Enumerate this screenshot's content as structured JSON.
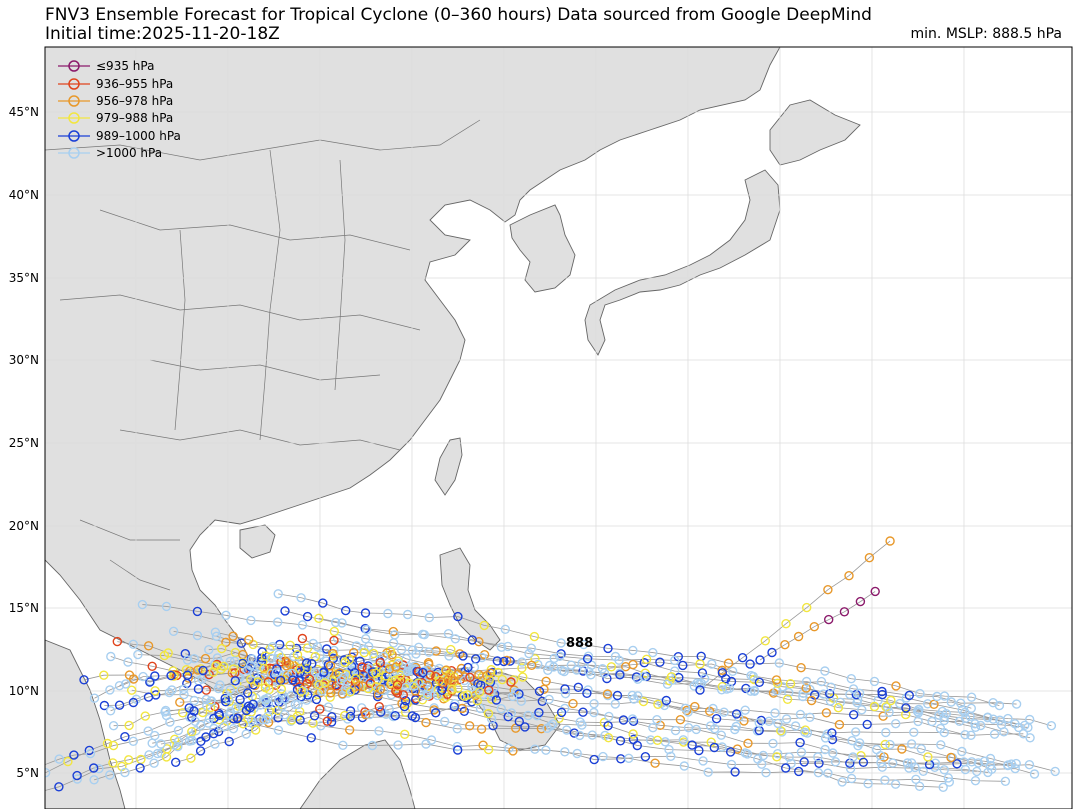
{
  "header": {
    "title_line1": "FNV3 Ensemble Forecast for Tropical Cyclone (0–360 hours) Data sourced from Google DeepMind",
    "title_line2": "Initial time:2025-11-20-18Z",
    "min_mslp": "min. MSLP: 888.5 hPa"
  },
  "legend": [
    {
      "label": "≤935 hPa",
      "color": "#8b1a6b"
    },
    {
      "label": "936–955 hPa",
      "color": "#e0441c"
    },
    {
      "label": "956–978 hPa",
      "color": "#e8982a"
    },
    {
      "label": "979–988 hPa",
      "color": "#f2e640"
    },
    {
      "label": "989–1000 hPa",
      "color": "#1a3fd6"
    },
    {
      "label": ">1000 hPa",
      "color": "#a8cff0"
    }
  ],
  "lat_labels": [
    "45°N",
    "40°N",
    "35°N",
    "30°N",
    "25°N",
    "20°N",
    "15°N",
    "10°N",
    "5°N"
  ],
  "peak_label": "888",
  "colors": {
    "land": "#e0e0e0",
    "ocean": "#ffffff",
    "border": "#666666",
    "grid": "#dddddd",
    "track_line": "#999999"
  }
}
